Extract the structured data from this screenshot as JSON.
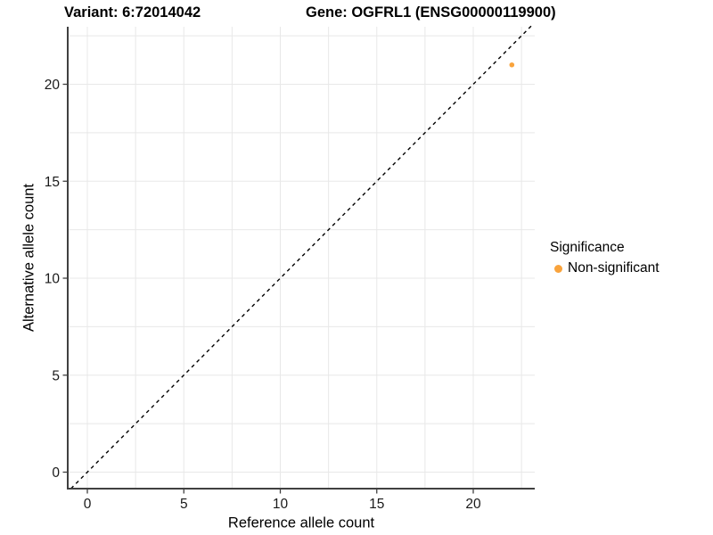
{
  "chart_data": {
    "type": "scatter",
    "titles": {
      "variant": "Variant: 6:72014042",
      "gene": "Gene: OGFRL1 (ENSG00000119900)"
    },
    "xlabel": "Reference allele count",
    "ylabel": "Alternative allele count",
    "x_ticks": [
      0,
      5,
      10,
      15,
      20
    ],
    "y_ticks": [
      0,
      5,
      10,
      15,
      20
    ],
    "xlim": [
      -1.0,
      23.2
    ],
    "ylim": [
      -0.85,
      23.0
    ],
    "grid": {
      "min": 0,
      "max": 22.5,
      "step": 2.5,
      "color": "#E8E8E8",
      "on": true
    },
    "series": [
      {
        "name": "Non-significant",
        "color": "#F9A33C",
        "points": [
          {
            "x": 22,
            "y": 21
          }
        ]
      }
    ],
    "reference_line": {
      "equation": "y = x",
      "style": "dashed",
      "color": "#000000"
    },
    "legend": {
      "title": "Significance",
      "position": "right",
      "items": [
        {
          "label": "Non-significant",
          "color": "#F9A33C"
        }
      ]
    },
    "axis_color": "#404040",
    "tick_label_color": "#1a1a1a"
  }
}
